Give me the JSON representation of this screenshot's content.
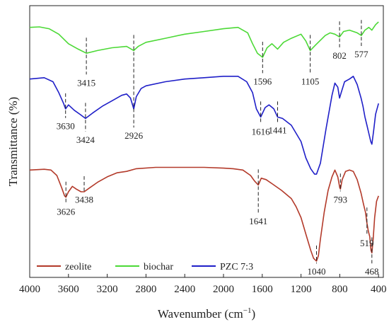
{
  "chart_data": {
    "type": "line",
    "title": "",
    "xlabel": "Wavenumber (cm",
    "xlabel_sup": "−1",
    "xlabel_close": ")",
    "ylabel": "Transmittance (%)",
    "x_reversed": true,
    "xlim": [
      4000,
      350
    ],
    "ylim": [
      0,
      100
    ],
    "x_ticks": [
      4000,
      3600,
      3200,
      2800,
      2400,
      2000,
      1600,
      1200,
      800,
      400
    ],
    "y_ticks_shown": false,
    "grid": false,
    "legend": {
      "placement": "bottom-left",
      "entries": [
        "zeolite",
        "biochar",
        "PZC 7:3"
      ]
    },
    "series": [
      {
        "name": "biochar",
        "color": "#4cd936",
        "points": [
          [
            4000,
            92
          ],
          [
            3900,
            92.2
          ],
          [
            3800,
            91.5
          ],
          [
            3700,
            89.5
          ],
          [
            3600,
            86
          ],
          [
            3500,
            84
          ],
          [
            3415,
            82.5
          ],
          [
            3300,
            83.5
          ],
          [
            3150,
            84.5
          ],
          [
            3000,
            85
          ],
          [
            2926,
            83.5
          ],
          [
            2880,
            85
          ],
          [
            2800,
            86.5
          ],
          [
            2600,
            88
          ],
          [
            2400,
            89.5
          ],
          [
            2200,
            90.5
          ],
          [
            2000,
            91.5
          ],
          [
            1850,
            92
          ],
          [
            1750,
            90
          ],
          [
            1700,
            86
          ],
          [
            1650,
            82.5
          ],
          [
            1596,
            81
          ],
          [
            1550,
            84.5
          ],
          [
            1500,
            86
          ],
          [
            1441,
            84
          ],
          [
            1380,
            86.5
          ],
          [
            1300,
            88
          ],
          [
            1200,
            89.5
          ],
          [
            1150,
            87
          ],
          [
            1105,
            83.5
          ],
          [
            1050,
            85.5
          ],
          [
            950,
            89
          ],
          [
            900,
            90
          ],
          [
            850,
            89.5
          ],
          [
            802,
            88.5
          ],
          [
            760,
            90.5
          ],
          [
            700,
            91
          ],
          [
            620,
            90
          ],
          [
            577,
            89
          ],
          [
            540,
            91
          ],
          [
            500,
            92
          ],
          [
            468,
            91
          ],
          [
            430,
            93
          ],
          [
            400,
            94
          ]
        ]
      },
      {
        "name": "PZC 7:3",
        "color": "#1f1fc8",
        "points": [
          [
            4000,
            73
          ],
          [
            3850,
            73.5
          ],
          [
            3760,
            72
          ],
          [
            3700,
            68
          ],
          [
            3650,
            64
          ],
          [
            3630,
            62
          ],
          [
            3600,
            63.5
          ],
          [
            3540,
            61.5
          ],
          [
            3480,
            60
          ],
          [
            3424,
            58.5
          ],
          [
            3350,
            60.5
          ],
          [
            3250,
            63
          ],
          [
            3150,
            65
          ],
          [
            3050,
            67
          ],
          [
            3000,
            67.5
          ],
          [
            2960,
            66
          ],
          [
            2926,
            62
          ],
          [
            2900,
            66.5
          ],
          [
            2850,
            69.5
          ],
          [
            2800,
            70.5
          ],
          [
            2600,
            72
          ],
          [
            2400,
            73
          ],
          [
            2200,
            73.5
          ],
          [
            2000,
            74
          ],
          [
            1850,
            74
          ],
          [
            1760,
            72
          ],
          [
            1700,
            68
          ],
          [
            1660,
            62
          ],
          [
            1616,
            59
          ],
          [
            1570,
            62.5
          ],
          [
            1530,
            63.5
          ],
          [
            1480,
            62
          ],
          [
            1441,
            59
          ],
          [
            1390,
            58.5
          ],
          [
            1300,
            56
          ],
          [
            1200,
            50
          ],
          [
            1150,
            44
          ],
          [
            1100,
            40
          ],
          [
            1060,
            38
          ],
          [
            1040,
            38
          ],
          [
            1000,
            42
          ],
          [
            940,
            55
          ],
          [
            880,
            67
          ],
          [
            850,
            71.5
          ],
          [
            820,
            70
          ],
          [
            802,
            66
          ],
          [
            785,
            68
          ],
          [
            750,
            72
          ],
          [
            700,
            73
          ],
          [
            660,
            74
          ],
          [
            620,
            71
          ],
          [
            580,
            66
          ],
          [
            560,
            63
          ],
          [
            540,
            59
          ],
          [
            519,
            56
          ],
          [
            500,
            53
          ],
          [
            480,
            50
          ],
          [
            468,
            49
          ],
          [
            450,
            54
          ],
          [
            430,
            60
          ],
          [
            400,
            64
          ]
        ]
      },
      {
        "name": "zeolite",
        "color": "#b33a2a",
        "points": [
          [
            4000,
            39.5
          ],
          [
            3850,
            39.8
          ],
          [
            3780,
            39.5
          ],
          [
            3720,
            37.5
          ],
          [
            3670,
            33
          ],
          [
            3640,
            30
          ],
          [
            3626,
            29.5
          ],
          [
            3600,
            31.5
          ],
          [
            3560,
            33.5
          ],
          [
            3520,
            32.5
          ],
          [
            3470,
            31.5
          ],
          [
            3438,
            31.5
          ],
          [
            3380,
            33
          ],
          [
            3300,
            35
          ],
          [
            3200,
            37
          ],
          [
            3100,
            38.5
          ],
          [
            3000,
            39
          ],
          [
            2900,
            40
          ],
          [
            2700,
            40.5
          ],
          [
            2400,
            40.5
          ],
          [
            2200,
            40.5
          ],
          [
            2000,
            40.2
          ],
          [
            1900,
            40
          ],
          [
            1800,
            39.5
          ],
          [
            1720,
            37.5
          ],
          [
            1680,
            35.5
          ],
          [
            1641,
            34
          ],
          [
            1610,
            36.5
          ],
          [
            1560,
            36
          ],
          [
            1500,
            34.5
          ],
          [
            1400,
            32
          ],
          [
            1300,
            29
          ],
          [
            1250,
            26
          ],
          [
            1200,
            22
          ],
          [
            1150,
            16
          ],
          [
            1100,
            10
          ],
          [
            1070,
            7
          ],
          [
            1040,
            6
          ],
          [
            1020,
            8
          ],
          [
            1000,
            14
          ],
          [
            960,
            24
          ],
          [
            920,
            32
          ],
          [
            880,
            37
          ],
          [
            850,
            39.5
          ],
          [
            820,
            37
          ],
          [
            800,
            33
          ],
          [
            793,
            32.5
          ],
          [
            775,
            36
          ],
          [
            740,
            39
          ],
          [
            700,
            39.5
          ],
          [
            660,
            39
          ],
          [
            620,
            36
          ],
          [
            580,
            31
          ],
          [
            555,
            27
          ],
          [
            535,
            24
          ],
          [
            519,
            20
          ],
          [
            505,
            17
          ],
          [
            490,
            15
          ],
          [
            478,
            10
          ],
          [
            468,
            9
          ],
          [
            455,
            14
          ],
          [
            440,
            22
          ],
          [
            420,
            28
          ],
          [
            400,
            30
          ]
        ]
      }
    ],
    "annotations": [
      {
        "label": "3415",
        "x": 3415,
        "series": "biochar",
        "text_y": 70.5
      },
      {
        "label": "2926",
        "x": 2926,
        "series": "biochar",
        "text_y": 51
      },
      {
        "label": "1596",
        "x": 1596,
        "series": "biochar",
        "text_y": 71
      },
      {
        "label": "1105",
        "x": 1105,
        "series": "biochar",
        "text_y": 71
      },
      {
        "label": "802",
        "x": 802,
        "series": "biochar",
        "text_y": 80.5
      },
      {
        "label": "577",
        "x": 577,
        "series": "biochar",
        "text_y": 81
      },
      {
        "label": "3630",
        "x": 3630,
        "series": "PZC 7:3",
        "text_y": 54.5
      },
      {
        "label": "3424",
        "x": 3424,
        "series": "PZC 7:3",
        "text_y": 49.5
      },
      {
        "label": "1616",
        "x": 1616,
        "series": "PZC 7:3",
        "text_y": 52.5
      },
      {
        "label": "1441",
        "x": 1441,
        "series": "PZC 7:3",
        "text_y": 53
      },
      {
        "label": "3626",
        "x": 3626,
        "series": "zeolite",
        "text_y": 23
      },
      {
        "label": "3438",
        "x": 3438,
        "series": "zeolite",
        "text_y": 27.5
      },
      {
        "label": "1641",
        "x": 1641,
        "series": "zeolite",
        "text_y": 19.5
      },
      {
        "label": "1040",
        "x": 1040,
        "series": "zeolite",
        "text_y": 1
      },
      {
        "label": "793",
        "x": 793,
        "series": "zeolite",
        "text_y": 27.5
      },
      {
        "label": "519",
        "x": 519,
        "series": "zeolite",
        "text_y": 11.5
      },
      {
        "label": "468",
        "x": 468,
        "series": "zeolite",
        "text_y": 1
      }
    ]
  }
}
